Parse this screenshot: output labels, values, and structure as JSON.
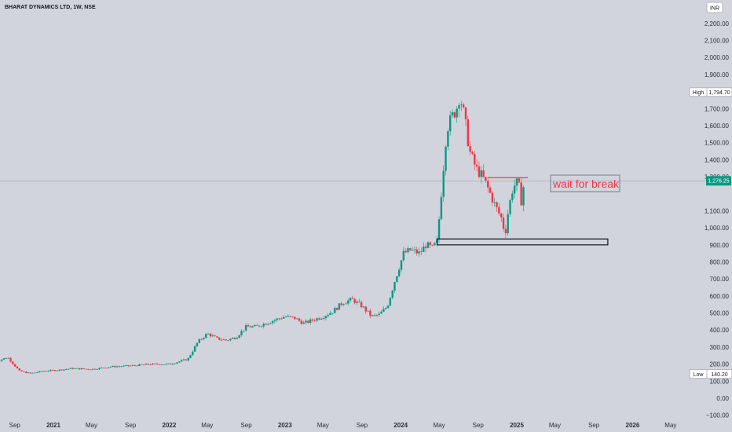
{
  "header": {
    "symbol_title": "BHARAT DYNAMICS LTD, 1W, NSE",
    "currency_badge": "INR"
  },
  "colors": {
    "background": "#d1d4dc",
    "up": "#089981",
    "down": "#f23645",
    "annotation": "#f23645",
    "price_line": "#9598a1",
    "price_badge": "#089981"
  },
  "chart_data": {
    "type": "candlestick",
    "title": "",
    "xlabel": "",
    "ylabel": "",
    "ylim": [
      -100,
      2250
    ],
    "y_scale": "linear",
    "grid": false,
    "y_ticks": [
      "2,200.00",
      "2,100.00",
      "2,000.00",
      "1,900.00",
      "1,700.00",
      "1,600.00",
      "1,500.00",
      "1,400.00",
      "1,300.00",
      "1,100.00",
      "1,000.00",
      "900.00",
      "800.00",
      "700.00",
      "600.00",
      "500.00",
      "400.00",
      "300.00",
      "200.00",
      "100.00",
      "0.00",
      "−100.00"
    ],
    "y_tick_values": [
      2200,
      2100,
      2000,
      1900,
      1700,
      1600,
      1500,
      1400,
      1300,
      1100,
      1000,
      900,
      800,
      700,
      600,
      500,
      400,
      300,
      200,
      100,
      0,
      -100
    ],
    "x_ticks": [
      {
        "label": "Sep",
        "date": "2020-09-01",
        "year": false
      },
      {
        "label": "2021",
        "date": "2021-01-01",
        "year": true
      },
      {
        "label": "May",
        "date": "2021-05-01",
        "year": false
      },
      {
        "label": "Sep",
        "date": "2021-09-01",
        "year": false
      },
      {
        "label": "2022",
        "date": "2022-01-01",
        "year": true
      },
      {
        "label": "May",
        "date": "2022-05-01",
        "year": false
      },
      {
        "label": "Sep",
        "date": "2022-09-01",
        "year": false
      },
      {
        "label": "2023",
        "date": "2023-01-01",
        "year": true
      },
      {
        "label": "May",
        "date": "2023-05-01",
        "year": false
      },
      {
        "label": "Sep",
        "date": "2023-09-01",
        "year": false
      },
      {
        "label": "2024",
        "date": "2024-01-01",
        "year": true
      },
      {
        "label": "May",
        "date": "2024-05-01",
        "year": false
      },
      {
        "label": "Sep",
        "date": "2024-09-01",
        "year": false
      },
      {
        "label": "2025",
        "date": "2025-01-01",
        "year": true
      },
      {
        "label": "May",
        "date": "2025-05-01",
        "year": false
      },
      {
        "label": "Sep",
        "date": "2025-09-01",
        "year": false
      },
      {
        "label": "2026",
        "date": "2026-01-01",
        "year": true
      },
      {
        "label": "May",
        "date": "2026-05-01",
        "year": false
      }
    ],
    "price_markers": {
      "high_label": "High",
      "high_value": "1,794.70",
      "low_label": "Low",
      "low_value": "140.20",
      "last_value": "1,276.25",
      "last_price": 1276.25
    },
    "price_path": [
      [
        "2020-07-01",
        215
      ],
      [
        "2020-08-10",
        240
      ],
      [
        "2020-09-15",
        160
      ],
      [
        "2020-10-20",
        145
      ],
      [
        "2020-12-01",
        160
      ],
      [
        "2021-01-15",
        165
      ],
      [
        "2021-03-01",
        175
      ],
      [
        "2021-05-01",
        170
      ],
      [
        "2021-07-01",
        185
      ],
      [
        "2021-09-01",
        190
      ],
      [
        "2021-11-01",
        200
      ],
      [
        "2022-01-01",
        200
      ],
      [
        "2022-02-01",
        215
      ],
      [
        "2022-03-01",
        230
      ],
      [
        "2022-04-01",
        330
      ],
      [
        "2022-05-01",
        380
      ],
      [
        "2022-06-01",
        350
      ],
      [
        "2022-07-01",
        340
      ],
      [
        "2022-08-01",
        360
      ],
      [
        "2022-09-01",
        420
      ],
      [
        "2022-10-01",
        420
      ],
      [
        "2022-11-01",
        440
      ],
      [
        "2022-12-01",
        460
      ],
      [
        "2023-01-01",
        480
      ],
      [
        "2023-02-01",
        470
      ],
      [
        "2023-03-01",
        440
      ],
      [
        "2023-04-01",
        460
      ],
      [
        "2023-05-01",
        480
      ],
      [
        "2023-06-01",
        510
      ],
      [
        "2023-07-01",
        560
      ],
      [
        "2023-08-01",
        580
      ],
      [
        "2023-09-01",
        540
      ],
      [
        "2023-10-01",
        480
      ],
      [
        "2023-10-25",
        490
      ],
      [
        "2023-11-20",
        540
      ],
      [
        "2023-12-15",
        700
      ],
      [
        "2024-01-10",
        850
      ],
      [
        "2024-02-01",
        870
      ],
      [
        "2024-03-01",
        850
      ],
      [
        "2024-03-20",
        900
      ],
      [
        "2024-04-10",
        880
      ],
      [
        "2024-04-25",
        920
      ],
      [
        "2024-05-10",
        1250
      ],
      [
        "2024-05-25",
        1580
      ],
      [
        "2024-06-10",
        1650
      ],
      [
        "2024-06-25",
        1700
      ],
      [
        "2024-07-05",
        1780
      ],
      [
        "2024-07-20",
        1650
      ],
      [
        "2024-08-05",
        1450
      ],
      [
        "2024-08-25",
        1350
      ],
      [
        "2024-09-15",
        1300
      ],
      [
        "2024-10-05",
        1220
      ],
      [
        "2024-10-25",
        1130
      ],
      [
        "2024-11-15",
        1050
      ],
      [
        "2024-11-25",
        960
      ],
      [
        "2024-12-05",
        1100
      ],
      [
        "2024-12-20",
        1240
      ],
      [
        "2025-01-05",
        1270
      ],
      [
        "2025-01-15",
        1160
      ],
      [
        "2025-01-25",
        1276
      ]
    ],
    "annotations": {
      "text_box": "wait for break",
      "resistance_line": {
        "from": "2024-10-01",
        "to": "2025-02-05",
        "price": 1295
      },
      "support_zone": {
        "from": "2024-04-25",
        "to": "2025-10-15",
        "price_low": 900,
        "price_high": 935
      }
    }
  }
}
